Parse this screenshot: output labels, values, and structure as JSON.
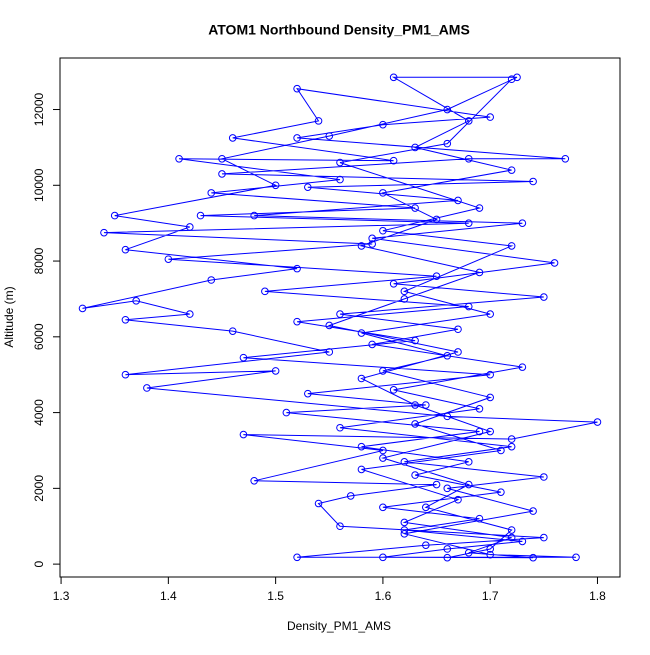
{
  "chart_data": {
    "type": "line",
    "title": "ATOM1 Northbound Density_PM1_AMS",
    "x_label": "Density_PM1_AMS",
    "y_label": "Altitude (m)",
    "markers": true,
    "series": [
      {
        "color": "#0000ff",
        "x": [
          1.66,
          1.7,
          1.72,
          1.64,
          1.68,
          1.6,
          1.7,
          1.63,
          1.58,
          1.67,
          1.55,
          1.62,
          1.69,
          1.58,
          1.65,
          1.6,
          1.72,
          1.63,
          1.68,
          1.61,
          1.725,
          1.66,
          1.55,
          1.45,
          1.5,
          1.35,
          1.42,
          1.36,
          1.52,
          1.44,
          1.32,
          1.37,
          1.42,
          1.36,
          1.46,
          1.55,
          1.36,
          1.5,
          1.38,
          1.66,
          1.8,
          1.72,
          1.47,
          1.6,
          1.48,
          1.65,
          1.57,
          1.54,
          1.56,
          1.75,
          1.64,
          1.52,
          1.78,
          1.7,
          1.62,
          1.74,
          1.66,
          1.75,
          1.62,
          1.72,
          1.56,
          1.69,
          1.61,
          1.73,
          1.59,
          1.67,
          1.56,
          1.75,
          1.61,
          1.76,
          1.59,
          1.73,
          1.48,
          1.67,
          1.53,
          1.74,
          1.45,
          1.68,
          1.77,
          1.52,
          1.6,
          1.7,
          1.52,
          1.54,
          1.46,
          1.61,
          1.41,
          1.56,
          1.44,
          1.63,
          1.43,
          1.68,
          1.34,
          1.59,
          1.4,
          1.65,
          1.49,
          1.68,
          1.52,
          1.63,
          1.47,
          1.7,
          1.53,
          1.64,
          1.51,
          1.69,
          1.58,
          1.68,
          1.63,
          1.71,
          1.6,
          1.69,
          1.62,
          1.73,
          1.66,
          1.6,
          1.74,
          1.68,
          1.72,
          1.62,
          1.67,
          1.58,
          1.71,
          1.63,
          1.7,
          1.6,
          1.66,
          1.58,
          1.7,
          1.62,
          1.72,
          1.6,
          1.69,
          1.56,
          1.66,
          1.72
        ],
        "values": [
          170,
          400,
          900,
          1500,
          2100,
          2800,
          3500,
          4200,
          4900,
          5600,
          6300,
          7000,
          7700,
          8400,
          9100,
          9800,
          10400,
          11000,
          11700,
          12850,
          12850,
          12000,
          11300,
          10700,
          10000,
          9200,
          8900,
          8300,
          7800,
          7500,
          6750,
          6950,
          6600,
          6450,
          6150,
          5600,
          5000,
          5100,
          4650,
          3900,
          3750,
          3300,
          3420,
          3000,
          2200,
          2100,
          1800,
          1600,
          1000,
          700,
          500,
          180,
          180,
          250,
          800,
          1400,
          2000,
          2300,
          2700,
          3100,
          3600,
          4100,
          4600,
          5200,
          5800,
          6200,
          6600,
          7050,
          7400,
          7950,
          8600,
          9000,
          9200,
          9600,
          9950,
          10100,
          10300,
          10700,
          10700,
          11250,
          11600,
          11800,
          12550,
          11700,
          11250,
          10650,
          10700,
          10150,
          9800,
          9400,
          9200,
          9000,
          8750,
          8450,
          8050,
          7600,
          7200,
          6800,
          6400,
          5900,
          5450,
          5000,
          4500,
          4200,
          4000,
          3500,
          3100,
          2700,
          2350,
          1900,
          1500,
          1200,
          900,
          600,
          400,
          180,
          170,
          300,
          700,
          1100,
          1700,
          2500,
          3000,
          3700,
          4400,
          5100,
          5500,
          6100,
          6600,
          7200,
          8400,
          8800,
          9400,
          10600,
          11100,
          12800
        ]
      }
    ],
    "xlim": [
      1.299,
      1.821
    ],
    "xticks": [
      1.3,
      1.4,
      1.5,
      1.6,
      1.7,
      1.8
    ],
    "ylim": [
      -340,
      13360
    ],
    "yticks": [
      0,
      2000,
      4000,
      6000,
      8000,
      10000,
      12000
    ]
  }
}
